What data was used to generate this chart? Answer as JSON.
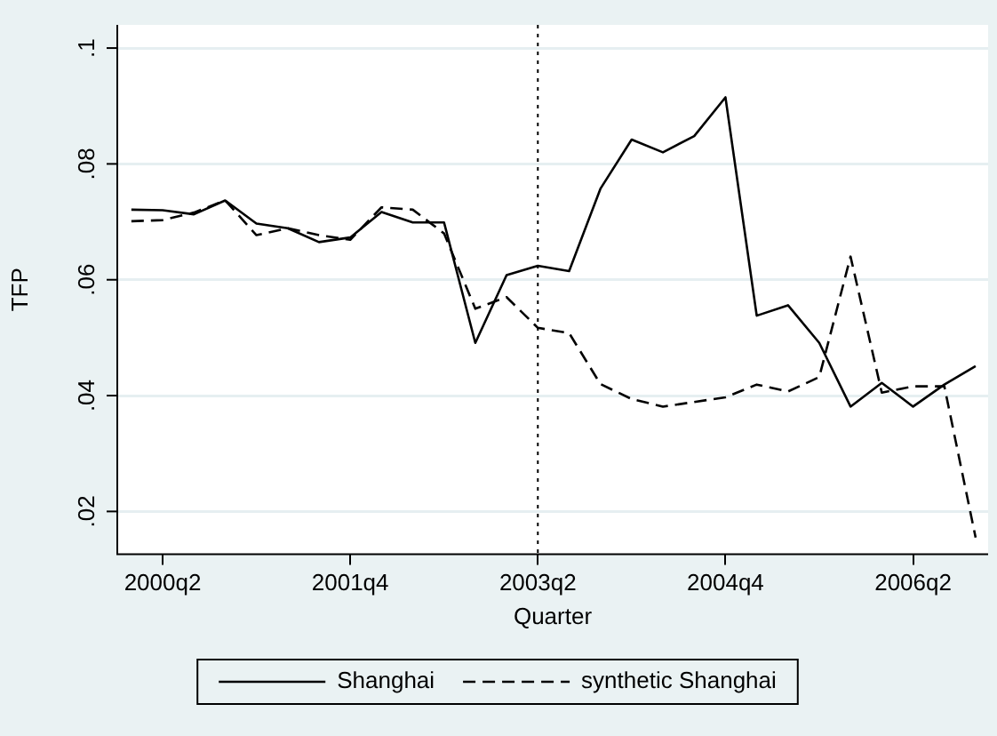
{
  "chart_data": {
    "type": "line",
    "xlabel": "Quarter",
    "ylabel": "TFP",
    "categories": [
      null,
      "2000q2",
      null,
      null,
      null,
      null,
      null,
      "2001q4",
      null,
      null,
      null,
      null,
      null,
      "2003q2",
      null,
      null,
      null,
      null,
      null,
      "2004q4",
      null,
      null,
      null,
      null,
      null,
      "2006q2",
      null,
      null
    ],
    "series": [
      {
        "name": "Shanghai",
        "color": "#000000",
        "line_style": "solid",
        "values": [
          0.0721,
          0.072,
          0.0713,
          0.0737,
          0.0697,
          0.0689,
          0.0665,
          0.0673,
          0.0717,
          0.0699,
          0.0699,
          0.0491,
          0.0608,
          0.0624,
          0.0615,
          0.0757,
          0.0842,
          0.082,
          0.0848,
          0.0915,
          0.0538,
          0.0556,
          0.0491,
          0.0381,
          0.0422,
          0.0381,
          0.0419,
          0.0451
        ]
      },
      {
        "name": "synthetic Shanghai",
        "color": "#000000",
        "line_style": "dashed",
        "values": [
          0.0701,
          0.0703,
          0.0716,
          0.0737,
          0.0677,
          0.0689,
          0.0677,
          0.0669,
          0.0725,
          0.0721,
          0.068,
          0.055,
          0.057,
          0.0517,
          0.0508,
          0.042,
          0.0394,
          0.0381,
          0.0389,
          0.0397,
          0.0419,
          0.0407,
          0.0432,
          0.064,
          0.0405,
          0.0416,
          0.0416,
          0.0155
        ]
      }
    ],
    "ylim": [
      0.0126,
      0.104
    ],
    "yticks": [
      {
        "value": 0.02,
        "label": ".02"
      },
      {
        "value": 0.04,
        "label": ".04"
      },
      {
        "value": 0.06,
        "label": ".06"
      },
      {
        "value": 0.08,
        "label": ".08"
      },
      {
        "value": 0.1,
        "label": ".1"
      }
    ],
    "ref_lines": [
      {
        "axis": "x",
        "value": "2003q2",
        "color": "#000000",
        "line_style": "dotted"
      }
    ],
    "grid": "y",
    "legend": "bottom",
    "marker": "none"
  }
}
